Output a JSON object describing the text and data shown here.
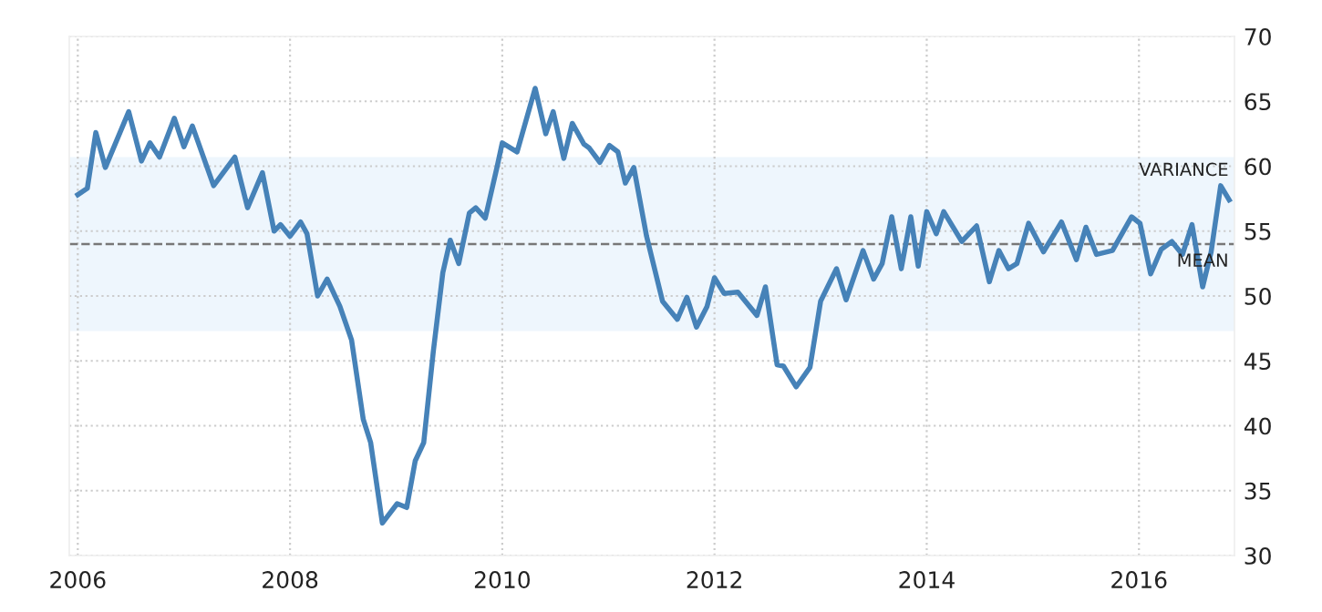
{
  "chart_data": {
    "type": "line",
    "x": [
      2006.0,
      2006.09,
      2006.17,
      2006.26,
      2006.48,
      2006.6,
      2006.68,
      2006.77,
      2006.91,
      2007.0,
      2007.08,
      2007.28,
      2007.48,
      2007.6,
      2007.74,
      2007.85,
      2007.91,
      2008.0,
      2008.1,
      2008.16,
      2008.26,
      2008.35,
      2008.47,
      2008.58,
      2008.69,
      2008.76,
      2008.87,
      2009.01,
      2009.1,
      2009.18,
      2009.26,
      2009.35,
      2009.44,
      2009.51,
      2009.59,
      2009.69,
      2009.75,
      2009.84,
      2009.95,
      2010.0,
      2010.14,
      2010.31,
      2010.41,
      2010.48,
      2010.58,
      2010.66,
      2010.77,
      2010.82,
      2010.92,
      2011.01,
      2011.09,
      2011.16,
      2011.24,
      2011.36,
      2011.51,
      2011.65,
      2011.74,
      2011.83,
      2011.93,
      2012.0,
      2012.09,
      2012.22,
      2012.4,
      2012.48,
      2012.59,
      2012.65,
      2012.77,
      2012.9,
      2013.0,
      2013.15,
      2013.24,
      2013.4,
      2013.5,
      2013.58,
      2013.67,
      2013.76,
      2013.85,
      2013.92,
      2014.0,
      2014.09,
      2014.16,
      2014.33,
      2014.47,
      2014.59,
      2014.68,
      2014.77,
      2014.85,
      2014.96,
      2015.1,
      2015.27,
      2015.41,
      2015.5,
      2015.6,
      2015.75,
      2015.93,
      2016.01,
      2016.11,
      2016.21,
      2016.31,
      2016.41,
      2016.5,
      2016.6,
      2016.68,
      2016.77,
      2016.85
    ],
    "series": [
      {
        "color": "#4682b8",
        "values": [
          57.8,
          58.3,
          62.6,
          59.9,
          64.2,
          60.4,
          61.8,
          60.7,
          63.7,
          61.5,
          63.1,
          58.5,
          60.7,
          56.8,
          59.5,
          55.0,
          55.5,
          54.6,
          55.7,
          54.8,
          50.0,
          51.3,
          49.2,
          46.6,
          40.5,
          38.7,
          32.5,
          34.0,
          33.7,
          37.3,
          38.7,
          45.7,
          51.8,
          54.3,
          52.5,
          56.4,
          56.8,
          56.0,
          59.9,
          61.8,
          61.1,
          66.0,
          62.5,
          64.2,
          60.6,
          63.3,
          61.7,
          61.4,
          60.3,
          61.6,
          61.1,
          58.7,
          59.9,
          54.6,
          49.6,
          48.2,
          49.9,
          47.6,
          49.2,
          51.4,
          50.2,
          50.3,
          48.5,
          50.7,
          44.7,
          44.6,
          43.0,
          44.5,
          49.6,
          52.1,
          49.7,
          53.5,
          51.3,
          52.5,
          56.1,
          52.1,
          56.1,
          52.3,
          56.5,
          54.8,
          56.5,
          54.2,
          55.4,
          51.1,
          53.5,
          52.1,
          52.5,
          55.6,
          53.4,
          55.7,
          52.8,
          55.3,
          53.2,
          53.5,
          56.1,
          55.6,
          51.7,
          53.6,
          54.2,
          53.2,
          55.5,
          50.7,
          53.4,
          58.5,
          57.4
        ]
      }
    ],
    "xlim": [
      2005.92,
      2016.9
    ],
    "xticks": [
      2006,
      2008,
      2010,
      2012,
      2014,
      2016
    ],
    "ylim": [
      30,
      70
    ],
    "yticks": [
      30,
      35,
      40,
      45,
      50,
      55,
      60,
      65,
      70
    ],
    "grid": true,
    "line_style": "solid",
    "marker": "none",
    "ref_lines": [
      {
        "axis": "y",
        "value": 54.0,
        "label": "MEAN",
        "color": "#777777",
        "line_style": "dashed"
      }
    ],
    "bands": [
      {
        "axis": "y",
        "from": 47.3,
        "to": 60.7,
        "label": "VARIANCE",
        "color": "#eef6fd"
      }
    ]
  }
}
